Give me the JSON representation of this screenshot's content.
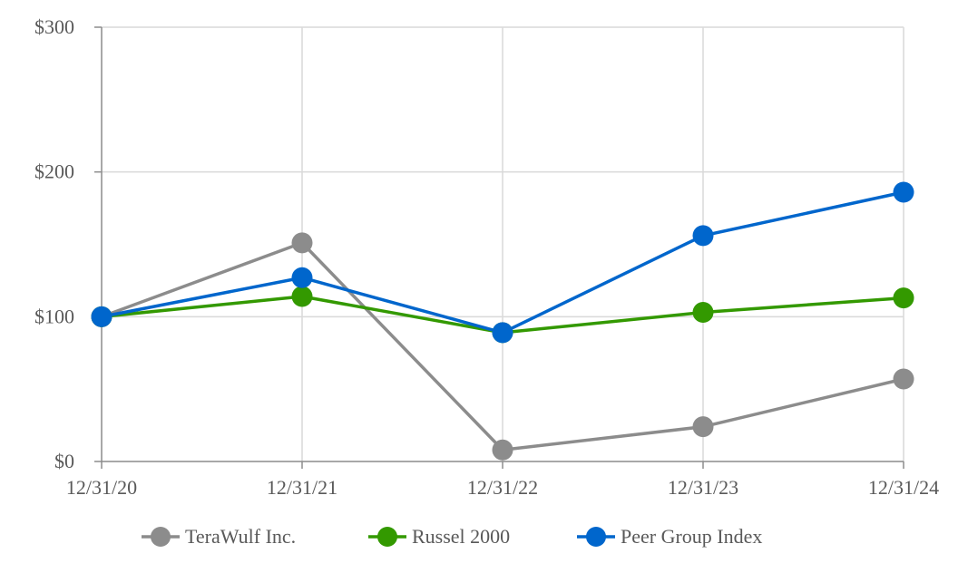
{
  "chart_data": {
    "type": "line",
    "title": "",
    "xlabel": "",
    "ylabel": "",
    "categories": [
      "12/31/20",
      "12/31/21",
      "12/31/22",
      "12/31/23",
      "12/31/24"
    ],
    "y_ticks": [
      "$0",
      "$100",
      "$200",
      "$300"
    ],
    "y_tick_values": [
      0,
      100,
      200,
      300
    ],
    "ylim": [
      0,
      300
    ],
    "grid": true,
    "legend_position": "bottom",
    "series": [
      {
        "name": "TeraWulf Inc.",
        "color": "#8c8c8c",
        "values": [
          100,
          151,
          8,
          24,
          57
        ]
      },
      {
        "name": "Russel 2000",
        "color": "#339900",
        "values": [
          100,
          114,
          89,
          103,
          113
        ]
      },
      {
        "name": "Peer Group Index",
        "color": "#0066cc",
        "values": [
          100,
          127,
          89,
          156,
          186
        ]
      }
    ]
  }
}
